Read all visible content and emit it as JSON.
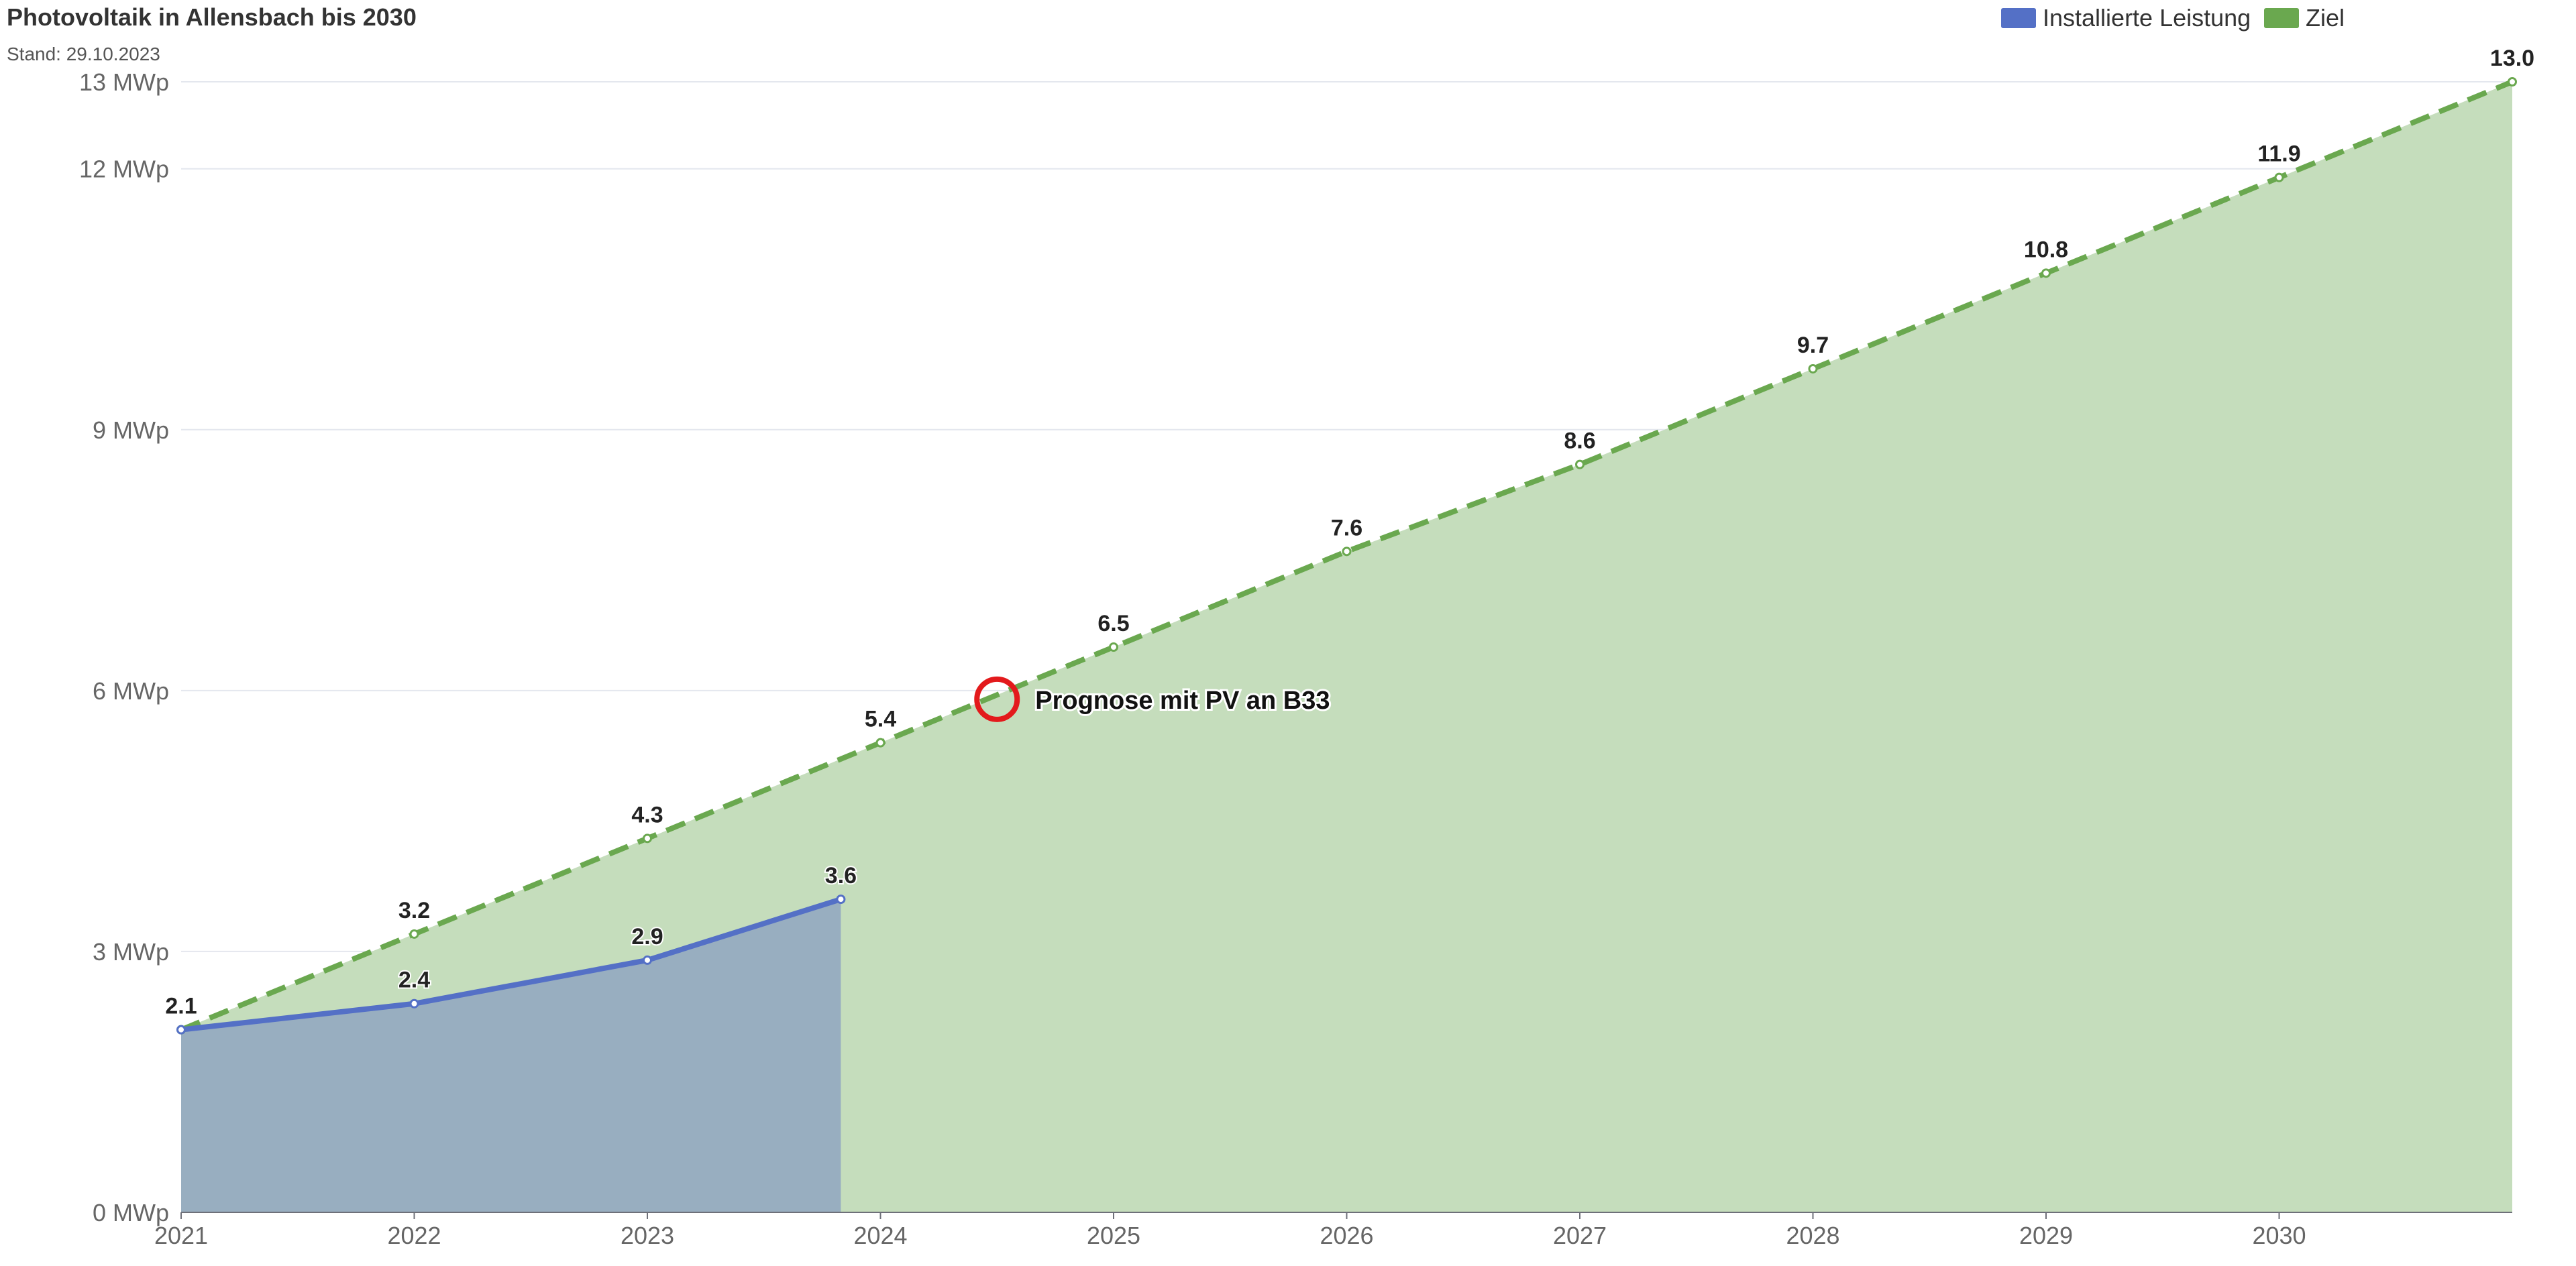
{
  "chart_data": {
    "type": "area",
    "title": "Photovoltaik in Allensbach bis 2030",
    "subtitle": "Stand: 29.10.2023",
    "xlim": [
      2021,
      2031
    ],
    "x_ticks": [
      "2021",
      "2022",
      "2023",
      "2024",
      "2025",
      "2026",
      "2027",
      "2028",
      "2029",
      "2030"
    ],
    "ylim": [
      0,
      13
    ],
    "y_ticks": [
      {
        "value": 0,
        "label": "0 MWp"
      },
      {
        "value": 3,
        "label": "3 MWp"
      },
      {
        "value": 6,
        "label": "6 MWp"
      },
      {
        "value": 9,
        "label": "9 MWp"
      },
      {
        "value": 12,
        "label": "12 MWp"
      },
      {
        "value": 13,
        "label": "13 MWp"
      }
    ],
    "grid": true,
    "legend_position": "top-right",
    "series": [
      {
        "name": "Installierte Leistung",
        "color": "#5470c6",
        "fill": "#98aec0",
        "dashed": false,
        "points": [
          {
            "x": 2021,
            "y": 2.1,
            "label": "2.1"
          },
          {
            "x": 2022,
            "y": 2.4,
            "label": "2.4"
          },
          {
            "x": 2023,
            "y": 2.9,
            "label": "2.9"
          },
          {
            "x": 2023.83,
            "y": 3.6,
            "label": "3.6"
          }
        ]
      },
      {
        "name": "Ziel",
        "color": "#6aa84f",
        "fill": "#c5ddbc",
        "dashed": true,
        "points": [
          {
            "x": 2021,
            "y": 2.1,
            "label": "2.1"
          },
          {
            "x": 2022,
            "y": 3.2,
            "label": "3.2"
          },
          {
            "x": 2023,
            "y": 4.3,
            "label": "4.3"
          },
          {
            "x": 2024,
            "y": 5.4,
            "label": "5.4"
          },
          {
            "x": 2025,
            "y": 6.5,
            "label": "6.5"
          },
          {
            "x": 2026,
            "y": 7.6,
            "label": "7.6"
          },
          {
            "x": 2027,
            "y": 8.6,
            "label": "8.6"
          },
          {
            "x": 2028,
            "y": 9.7,
            "label": "9.7"
          },
          {
            "x": 2029,
            "y": 10.8,
            "label": "10.8"
          },
          {
            "x": 2030,
            "y": 11.9,
            "label": "11.9"
          },
          {
            "x": 2031,
            "y": 13.0,
            "label": "13.0"
          }
        ]
      }
    ],
    "annotation": {
      "text": "Prognose mit PV an B33",
      "x": 2024.5,
      "y": 5.9,
      "color": "#e31a1c"
    }
  }
}
